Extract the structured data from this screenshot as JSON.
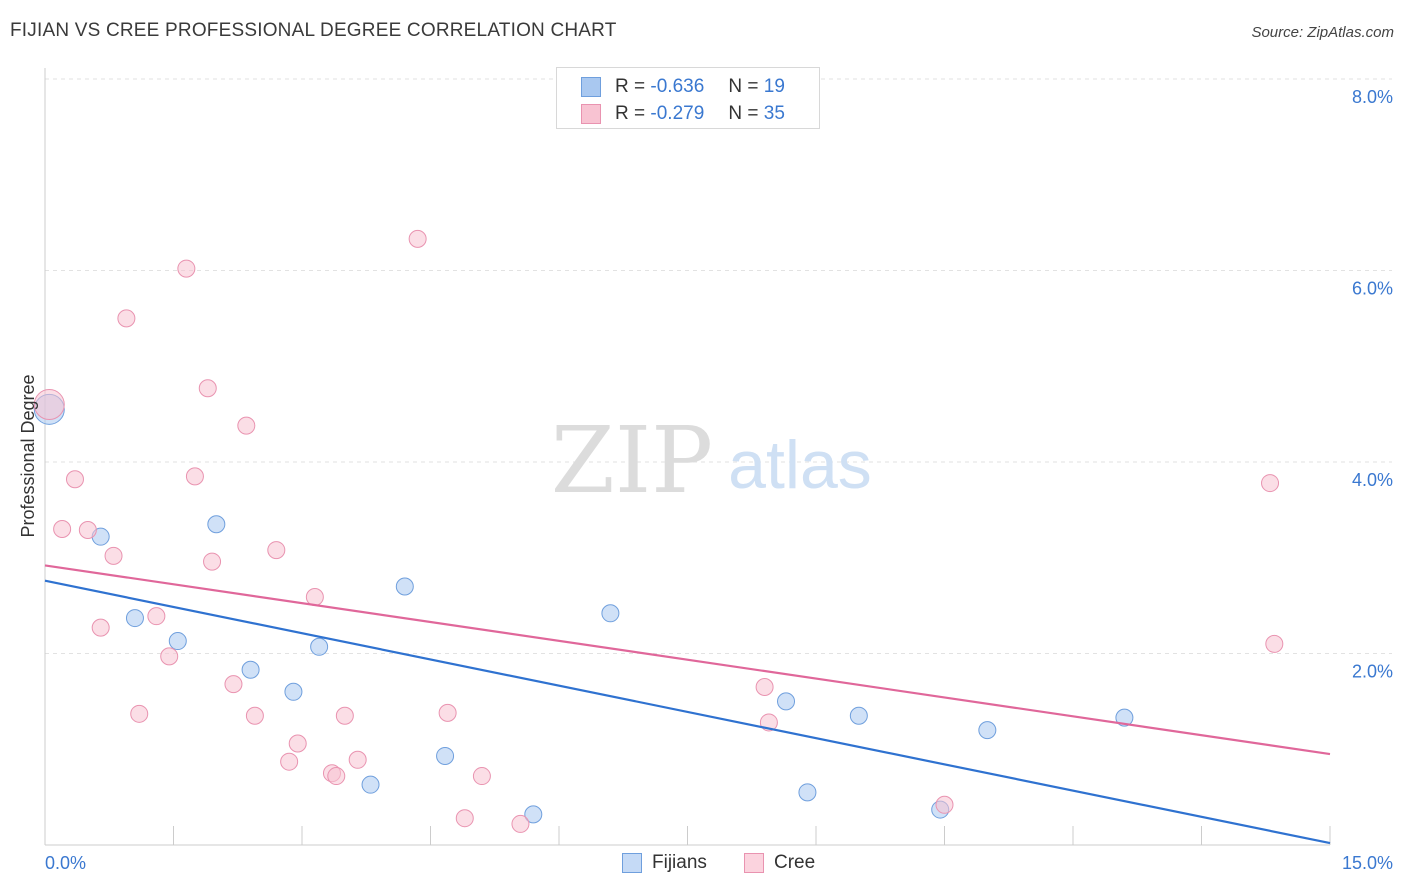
{
  "title": "FIJIAN VS CREE PROFESSIONAL DEGREE CORRELATION CHART",
  "source": "Source: ZipAtlas.com",
  "watermark": {
    "zip": "ZIP",
    "atlas": "atlas"
  },
  "legend": {
    "rows": [
      {
        "r_label": "R =",
        "r_value": "-0.636",
        "n_label": "N =",
        "n_value": "19",
        "color": "#a9c8f0",
        "border": "#6f9fdd"
      },
      {
        "r_label": "R =",
        "r_value": "-0.279",
        "n_label": "N =",
        "n_value": "35",
        "color": "#f8c3d2",
        "border": "#e993b0"
      }
    ]
  },
  "bottom_legend": [
    {
      "label": "Fijians",
      "color": "#c5daf6",
      "border": "#6f9fdd"
    },
    {
      "label": "Cree",
      "color": "#fbd3de",
      "border": "#e993b0"
    }
  ],
  "chart_data": {
    "type": "scatter",
    "title": "FIJIAN VS CREE PROFESSIONAL DEGREE CORRELATION CHART",
    "xlabel": "",
    "ylabel": "Professional Degree",
    "xlim": [
      0,
      15
    ],
    "ylim": [
      0,
      8.0
    ],
    "x_tick_labels": [
      "0.0%",
      "15.0%"
    ],
    "y_ticks": [
      2,
      4,
      6,
      8
    ],
    "y_tick_labels": [
      "2.0%",
      "4.0%",
      "6.0%",
      "8.0%"
    ],
    "grid": true,
    "series": [
      {
        "name": "Fijians",
        "color": "#a9c8f0",
        "stroke": "#6f9fdd",
        "line_color": "#2f72d0",
        "trend": {
          "x": [
            0,
            15
          ],
          "y": [
            2.76,
            0.02
          ]
        },
        "points": [
          {
            "x": 0.05,
            "y": 4.55,
            "big": true
          },
          {
            "x": 0.65,
            "y": 3.22
          },
          {
            "x": 1.05,
            "y": 2.37
          },
          {
            "x": 1.55,
            "y": 2.13
          },
          {
            "x": 2.0,
            "y": 3.35
          },
          {
            "x": 2.4,
            "y": 1.83
          },
          {
            "x": 2.9,
            "y": 1.6
          },
          {
            "x": 3.2,
            "y": 2.07
          },
          {
            "x": 3.8,
            "y": 0.63
          },
          {
            "x": 4.2,
            "y": 2.7
          },
          {
            "x": 4.67,
            "y": 0.93
          },
          {
            "x": 5.7,
            "y": 0.32
          },
          {
            "x": 6.6,
            "y": 2.42
          },
          {
            "x": 8.65,
            "y": 1.5
          },
          {
            "x": 8.9,
            "y": 0.55
          },
          {
            "x": 9.5,
            "y": 1.35
          },
          {
            "x": 10.45,
            "y": 0.37
          },
          {
            "x": 11.0,
            "y": 1.2
          },
          {
            "x": 12.6,
            "y": 1.33
          }
        ]
      },
      {
        "name": "Cree",
        "color": "#f8c3d2",
        "stroke": "#e993b0",
        "line_color": "#e0679a",
        "trend": {
          "x": [
            0,
            15
          ],
          "y": [
            2.92,
            0.95
          ]
        },
        "points": [
          {
            "x": 0.05,
            "y": 4.6,
            "big": true
          },
          {
            "x": 0.2,
            "y": 3.3
          },
          {
            "x": 0.35,
            "y": 3.82
          },
          {
            "x": 0.5,
            "y": 3.29
          },
          {
            "x": 0.65,
            "y": 2.27
          },
          {
            "x": 0.8,
            "y": 3.02
          },
          {
            "x": 0.95,
            "y": 5.5
          },
          {
            "x": 1.1,
            "y": 1.37
          },
          {
            "x": 1.3,
            "y": 2.39
          },
          {
            "x": 1.45,
            "y": 1.97
          },
          {
            "x": 1.65,
            "y": 6.02
          },
          {
            "x": 1.75,
            "y": 3.85
          },
          {
            "x": 1.9,
            "y": 4.77
          },
          {
            "x": 1.95,
            "y": 2.96
          },
          {
            "x": 2.2,
            "y": 1.68
          },
          {
            "x": 2.35,
            "y": 4.38
          },
          {
            "x": 2.45,
            "y": 1.35
          },
          {
            "x": 2.7,
            "y": 3.08
          },
          {
            "x": 2.85,
            "y": 0.87
          },
          {
            "x": 2.95,
            "y": 1.06
          },
          {
            "x": 3.15,
            "y": 2.59
          },
          {
            "x": 3.35,
            "y": 0.75
          },
          {
            "x": 3.4,
            "y": 0.72
          },
          {
            "x": 3.5,
            "y": 1.35
          },
          {
            "x": 3.65,
            "y": 0.89
          },
          {
            "x": 4.35,
            "y": 6.33
          },
          {
            "x": 4.7,
            "y": 1.38
          },
          {
            "x": 4.9,
            "y": 0.28
          },
          {
            "x": 5.1,
            "y": 0.72
          },
          {
            "x": 5.55,
            "y": 0.22
          },
          {
            "x": 8.4,
            "y": 1.65
          },
          {
            "x": 8.45,
            "y": 1.28
          },
          {
            "x": 10.5,
            "y": 0.42
          },
          {
            "x": 14.3,
            "y": 3.78
          },
          {
            "x": 14.35,
            "y": 2.1
          }
        ]
      }
    ]
  }
}
